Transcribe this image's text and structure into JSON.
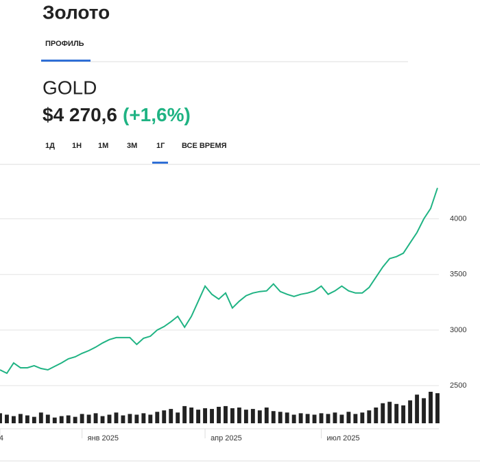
{
  "header": {
    "title": "Золото",
    "tab": "ПРОФИЛЬ"
  },
  "quote": {
    "ticker": "GOLD",
    "price": "$4 270,6",
    "change": "(+1,6%)"
  },
  "periods": [
    "1Д",
    "1Н",
    "1М",
    "3М",
    "1Г",
    "ВСЕ ВРЕМЯ"
  ],
  "chart_data": {
    "type": "line",
    "color": "#1fb383",
    "volume_color": "#222222",
    "grid": true,
    "categories": [
      "4",
      null,
      null,
      null,
      null,
      null,
      null,
      null,
      null,
      null,
      null,
      null,
      "янв 2025",
      null,
      null,
      null,
      null,
      null,
      null,
      null,
      null,
      null,
      null,
      null,
      null,
      null,
      null,
      null,
      null,
      null,
      "апр 2025",
      null,
      null,
      null,
      null,
      null,
      null,
      null,
      null,
      null,
      null,
      null,
      null,
      null,
      null,
      null,
      null,
      "июл 2025",
      null,
      null,
      null,
      null,
      null,
      null,
      null,
      null,
      null,
      null,
      null,
      null,
      null,
      null,
      null,
      null,
      null
    ],
    "values": [
      2642,
      2611,
      2704,
      2660,
      2660,
      2679,
      2654,
      2642,
      2673,
      2704,
      2741,
      2759,
      2790,
      2815,
      2846,
      2883,
      2914,
      2932,
      2932,
      2932,
      2870,
      2926,
      2944,
      3000,
      3031,
      3074,
      3123,
      3025,
      3123,
      3259,
      3395,
      3321,
      3278,
      3333,
      3198,
      3259,
      3309,
      3333,
      3346,
      3352,
      3414,
      3346,
      3321,
      3302,
      3321,
      3333,
      3352,
      3395,
      3321,
      3352,
      3395,
      3352,
      3333,
      3333,
      3383,
      3475,
      3568,
      3642,
      3660,
      3691,
      3784,
      3877,
      4000,
      4093,
      4278
    ],
    "volume": [
      14,
      12,
      10,
      13,
      11,
      9,
      15,
      12,
      8,
      10,
      11,
      9,
      13,
      12,
      14,
      10,
      12,
      15,
      11,
      13,
      12,
      14,
      12,
      16,
      18,
      20,
      15,
      24,
      22,
      19,
      21,
      20,
      23,
      24,
      21,
      22,
      19,
      20,
      18,
      22,
      17,
      16,
      15,
      12,
      14,
      13,
      12,
      14,
      13,
      15,
      12,
      16,
      13,
      15,
      18,
      22,
      28,
      30,
      27,
      25,
      32,
      40,
      35,
      44,
      42
    ],
    "ylim": [
      2500,
      4490
    ],
    "yticks": [
      2500,
      3000,
      3500,
      4000
    ]
  }
}
